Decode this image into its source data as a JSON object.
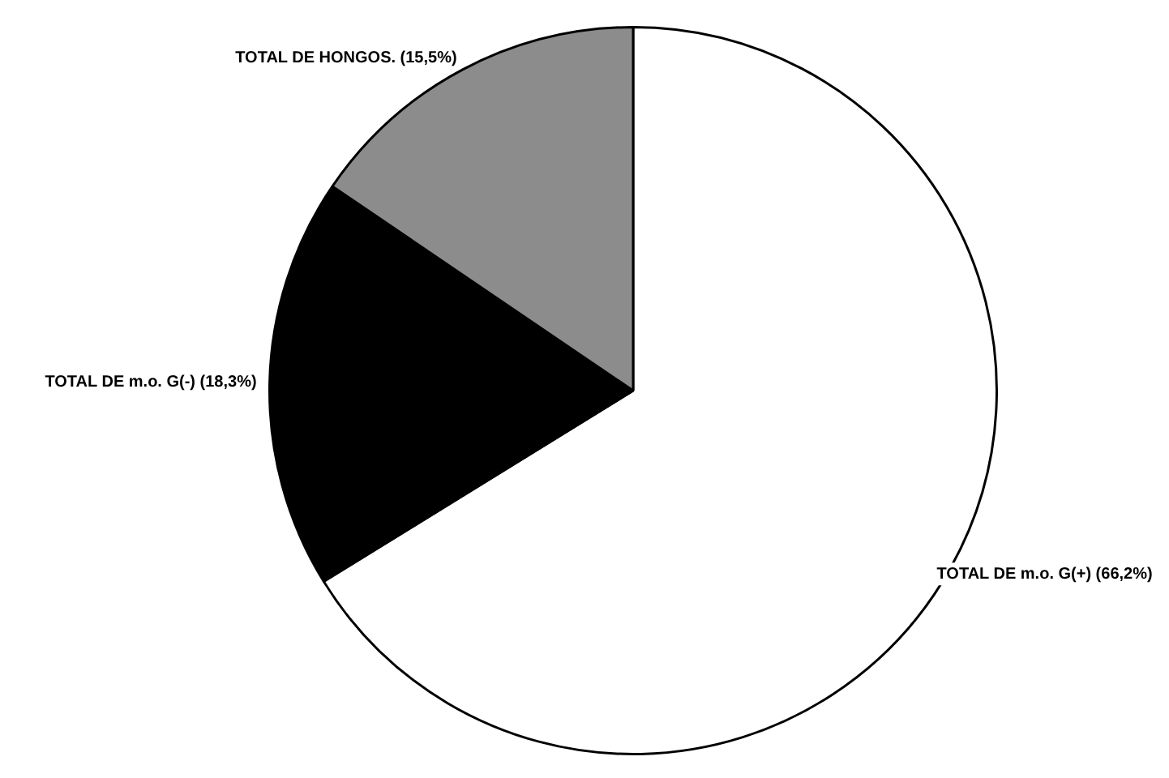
{
  "chart_data": {
    "type": "pie",
    "categories": [
      "TOTAL DE m.o. G(+)",
      "TOTAL DE m.o. G(-)",
      "TOTAL DE HONGOS."
    ],
    "values": [
      66.2,
      18.3,
      15.5
    ],
    "value_labels": [
      "(66,2%)",
      "(18,3%)",
      "(15,5%)"
    ],
    "colors": [
      "#ffffff",
      "#000000",
      "#8c8c8c"
    ],
    "legend": false
  }
}
